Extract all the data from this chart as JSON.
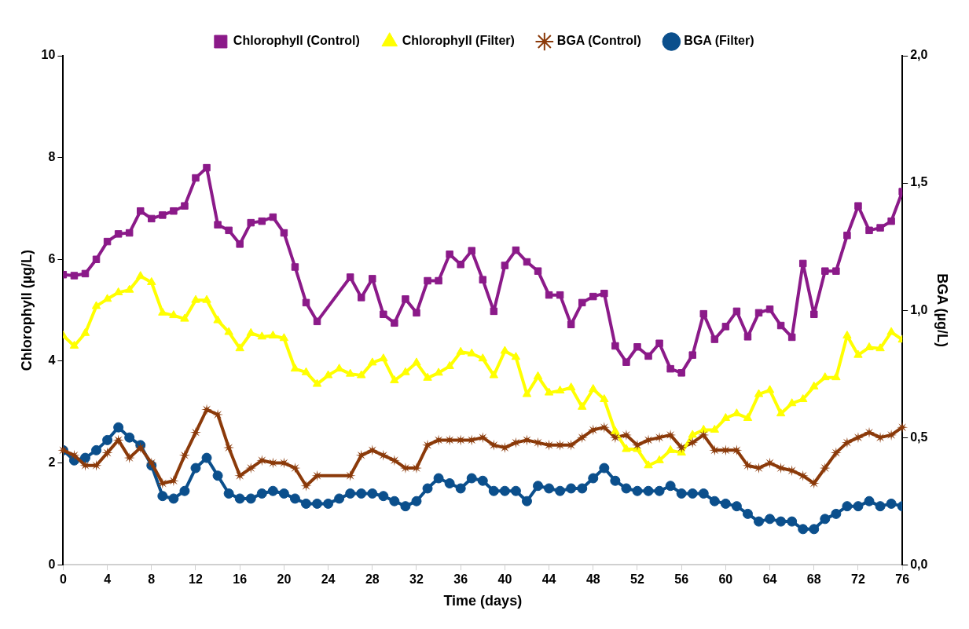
{
  "chart_data": {
    "type": "line",
    "xlabel": "Time (days)",
    "ylabel": "Chlorophyll (µg/L)",
    "y2label": "BGA (µg/L)",
    "xlim": [
      0,
      76
    ],
    "xticks": [
      0,
      4,
      8,
      12,
      16,
      20,
      24,
      28,
      32,
      36,
      40,
      44,
      48,
      52,
      56,
      60,
      64,
      68,
      72,
      76
    ],
    "ylim": [
      0,
      10
    ],
    "yticks": [
      0,
      2,
      4,
      6,
      8,
      10
    ],
    "y2lim": [
      0,
      2
    ],
    "y2ticks": [
      {
        "value": 0,
        "label": "0,0"
      },
      {
        "value": 0.5,
        "label": "0,5"
      },
      {
        "value": 1,
        "label": "1,0"
      },
      {
        "value": 1.5,
        "label": "1,5"
      },
      {
        "value": 2,
        "label": "2,0"
      }
    ],
    "grid": false,
    "legend": "top",
    "line_style": "solid",
    "series": [
      {
        "name": "Chlorophyll (Control)",
        "color": "#8b1a89",
        "marker": "square",
        "x": [
          0,
          1,
          2,
          3,
          4,
          5,
          6,
          7,
          8,
          9,
          10,
          11,
          12,
          13,
          14,
          15,
          16,
          17,
          18,
          19,
          20,
          21,
          22,
          23,
          26,
          27,
          28,
          29,
          30,
          31,
          32,
          33,
          34,
          35,
          36,
          37,
          38,
          39,
          40,
          41,
          42,
          43,
          44,
          45,
          46,
          47,
          48,
          49,
          50,
          51,
          52,
          53,
          54,
          55,
          56,
          57,
          58,
          59,
          60,
          61,
          62,
          63,
          64,
          65,
          66,
          67,
          68,
          69,
          70,
          71,
          72,
          73,
          74,
          75,
          76
        ],
        "values": [
          5.7,
          5.68,
          5.72,
          6.0,
          6.35,
          6.5,
          6.52,
          6.95,
          6.8,
          6.87,
          6.95,
          7.05,
          7.6,
          7.8,
          6.68,
          6.57,
          6.3,
          6.72,
          6.75,
          6.83,
          6.52,
          5.85,
          5.15,
          4.78,
          5.65,
          5.25,
          5.62,
          4.92,
          4.75,
          5.22,
          4.95,
          5.58,
          5.58,
          6.1,
          5.9,
          6.17,
          5.6,
          4.98,
          5.88,
          6.18,
          5.95,
          5.77,
          5.3,
          5.3,
          4.72,
          5.15,
          5.27,
          5.33,
          4.3,
          3.98,
          4.28,
          4.1,
          4.35,
          3.85,
          3.77,
          4.12,
          4.93,
          4.43,
          4.68,
          4.98,
          4.48,
          4.95,
          5.02,
          4.7,
          4.47,
          5.92,
          4.92,
          5.77,
          5.77,
          6.47,
          7.05,
          6.57,
          6.62,
          6.75,
          7.33
        ]
      },
      {
        "name": "Chlorophyll (Filter)",
        "color": "#ffff00",
        "marker": "triangle",
        "x": [
          0,
          1,
          2,
          3,
          4,
          5,
          6,
          7,
          8,
          9,
          10,
          11,
          12,
          13,
          14,
          15,
          16,
          17,
          18,
          19,
          20,
          21,
          22,
          23,
          24,
          25,
          26,
          27,
          28,
          29,
          30,
          31,
          32,
          33,
          34,
          35,
          36,
          37,
          38,
          39,
          40,
          41,
          42,
          43,
          44,
          45,
          46,
          47,
          48,
          49,
          50,
          51,
          52,
          53,
          54,
          55,
          56,
          57,
          58,
          59,
          60,
          61,
          62,
          63,
          64,
          65,
          66,
          67,
          68,
          69,
          70,
          71,
          72,
          73,
          74,
          75,
          76
        ],
        "values": [
          4.5,
          4.3,
          4.55,
          5.08,
          5.22,
          5.35,
          5.4,
          5.67,
          5.55,
          4.95,
          4.9,
          4.83,
          5.2,
          5.2,
          4.8,
          4.57,
          4.25,
          4.55,
          4.48,
          4.5,
          4.45,
          3.85,
          3.78,
          3.55,
          3.72,
          3.85,
          3.75,
          3.72,
          3.97,
          4.05,
          3.62,
          3.78,
          3.97,
          3.67,
          3.77,
          3.9,
          4.18,
          4.15,
          4.05,
          3.72,
          4.2,
          4.08,
          3.35,
          3.7,
          3.38,
          3.42,
          3.48,
          3.1,
          3.45,
          3.25,
          2.62,
          2.27,
          2.27,
          1.95,
          2.05,
          2.25,
          2.2,
          2.55,
          2.65,
          2.65,
          2.88,
          2.97,
          2.88,
          3.35,
          3.43,
          2.97,
          3.17,
          3.25,
          3.5,
          3.68,
          3.68,
          4.5,
          4.12,
          4.27,
          4.25,
          4.57,
          4.42
        ]
      },
      {
        "name": "BGA (Control)",
        "color": "#8b3a0a",
        "marker": "star",
        "axis": "y2",
        "x": [
          0,
          1,
          2,
          3,
          4,
          5,
          6,
          7,
          8,
          9,
          10,
          11,
          12,
          13,
          14,
          15,
          16,
          17,
          18,
          19,
          20,
          21,
          22,
          23,
          26,
          27,
          28,
          29,
          30,
          31,
          32,
          33,
          34,
          35,
          36,
          37,
          38,
          39,
          40,
          41,
          42,
          43,
          44,
          45,
          46,
          47,
          48,
          49,
          50,
          51,
          52,
          53,
          54,
          55,
          56,
          57,
          58,
          59,
          60,
          61,
          62,
          63,
          64,
          65,
          66,
          67,
          68,
          69,
          70,
          71,
          72,
          73,
          74,
          75,
          76
        ],
        "values": [
          0.45,
          0.43,
          0.39,
          0.39,
          0.44,
          0.49,
          0.42,
          0.46,
          0.4,
          0.32,
          0.33,
          0.43,
          0.52,
          0.61,
          0.59,
          0.46,
          0.35,
          0.38,
          0.41,
          0.4,
          0.4,
          0.38,
          0.31,
          0.35,
          0.35,
          0.43,
          0.45,
          0.43,
          0.41,
          0.38,
          0.38,
          0.47,
          0.49,
          0.49,
          0.49,
          0.49,
          0.5,
          0.47,
          0.46,
          0.48,
          0.49,
          0.48,
          0.47,
          0.47,
          0.47,
          0.5,
          0.53,
          0.54,
          0.5,
          0.51,
          0.47,
          0.49,
          0.5,
          0.51,
          0.46,
          0.48,
          0.51,
          0.45,
          0.45,
          0.45,
          0.39,
          0.38,
          0.4,
          0.38,
          0.37,
          0.35,
          0.32,
          0.38,
          0.44,
          0.48,
          0.5,
          0.52,
          0.5,
          0.51,
          0.54
        ]
      },
      {
        "name": "BGA (Filter)",
        "color": "#0b4f8c",
        "marker": "circle",
        "axis": "y2",
        "x": [
          0,
          1,
          2,
          3,
          4,
          5,
          6,
          7,
          8,
          9,
          10,
          11,
          12,
          13,
          14,
          15,
          16,
          17,
          18,
          19,
          20,
          21,
          22,
          23,
          24,
          25,
          26,
          27,
          28,
          29,
          30,
          31,
          32,
          33,
          34,
          35,
          36,
          37,
          38,
          39,
          40,
          41,
          42,
          43,
          44,
          45,
          46,
          47,
          48,
          49,
          50,
          51,
          52,
          53,
          54,
          55,
          56,
          57,
          58,
          59,
          60,
          61,
          62,
          63,
          64,
          65,
          66,
          67,
          68,
          69,
          70,
          71,
          72,
          73,
          74,
          75,
          76
        ],
        "values": [
          0.45,
          0.41,
          0.42,
          0.45,
          0.49,
          0.54,
          0.5,
          0.47,
          0.39,
          0.27,
          0.26,
          0.29,
          0.38,
          0.42,
          0.35,
          0.28,
          0.26,
          0.26,
          0.28,
          0.29,
          0.28,
          0.26,
          0.24,
          0.24,
          0.24,
          0.26,
          0.28,
          0.28,
          0.28,
          0.27,
          0.25,
          0.23,
          0.25,
          0.3,
          0.34,
          0.32,
          0.3,
          0.34,
          0.33,
          0.29,
          0.29,
          0.29,
          0.25,
          0.31,
          0.3,
          0.29,
          0.3,
          0.3,
          0.34,
          0.38,
          0.33,
          0.3,
          0.29,
          0.29,
          0.29,
          0.31,
          0.28,
          0.28,
          0.28,
          0.25,
          0.24,
          0.23,
          0.2,
          0.17,
          0.18,
          0.17,
          0.17,
          0.14,
          0.14,
          0.18,
          0.2,
          0.23,
          0.23,
          0.25,
          0.23,
          0.24,
          0.23
        ]
      }
    ]
  }
}
